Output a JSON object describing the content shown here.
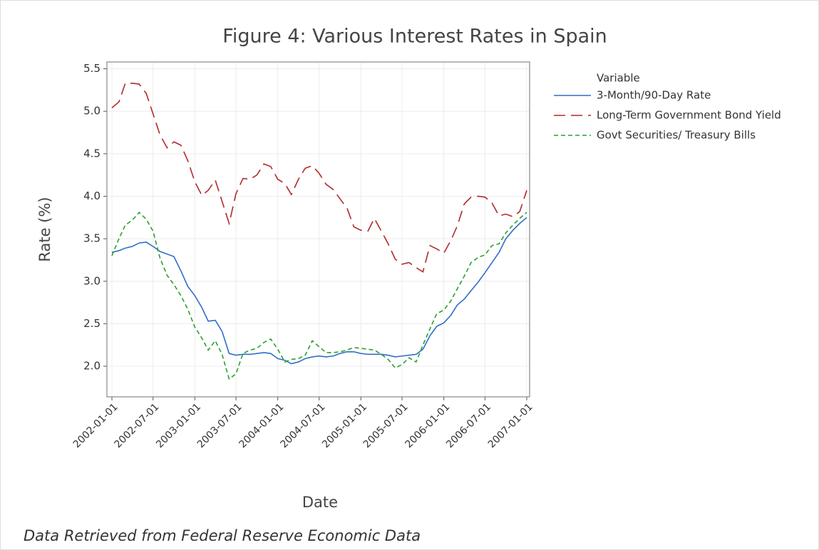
{
  "chart_data": {
    "type": "line",
    "title": "Figure 4: Various Interest Rates in Spain",
    "x_label": "Date",
    "y_label": "Rate (%)",
    "legend_title": "Variable",
    "caption": "Data Retrieved from Federal Reserve Economic Data",
    "legend": "right",
    "grid": true,
    "x": [
      "2002-01-01",
      "2002-02-01",
      "2002-03-01",
      "2002-04-01",
      "2002-05-01",
      "2002-06-01",
      "2002-07-01",
      "2002-08-01",
      "2002-09-01",
      "2002-10-01",
      "2002-11-01",
      "2002-12-01",
      "2003-01-01",
      "2003-02-01",
      "2003-03-01",
      "2003-04-01",
      "2003-05-01",
      "2003-06-01",
      "2003-07-01",
      "2003-08-01",
      "2003-09-01",
      "2003-10-01",
      "2003-11-01",
      "2003-12-01",
      "2004-01-01",
      "2004-02-01",
      "2004-03-01",
      "2004-04-01",
      "2004-05-01",
      "2004-06-01",
      "2004-07-01",
      "2004-08-01",
      "2004-09-01",
      "2004-10-01",
      "2004-11-01",
      "2004-12-01",
      "2005-01-01",
      "2005-02-01",
      "2005-03-01",
      "2005-04-01",
      "2005-05-01",
      "2005-06-01",
      "2005-07-01",
      "2005-08-01",
      "2005-09-01",
      "2005-10-01",
      "2005-11-01",
      "2005-12-01",
      "2006-01-01",
      "2006-02-01",
      "2006-03-01",
      "2006-04-01",
      "2006-05-01",
      "2006-06-01",
      "2006-07-01",
      "2006-08-01",
      "2006-09-01",
      "2006-10-01",
      "2006-11-01",
      "2006-12-01",
      "2007-01-01"
    ],
    "series": [
      {
        "name": "3-Month/90-Day Rate",
        "color": "#2f6fc6",
        "linestyle": "solid",
        "values": [
          3.34,
          3.36,
          3.39,
          3.41,
          3.45,
          3.46,
          3.41,
          3.35,
          3.32,
          3.29,
          3.12,
          2.94,
          2.83,
          2.69,
          2.53,
          2.54,
          2.41,
          2.15,
          2.13,
          2.14,
          2.14,
          2.15,
          2.16,
          2.15,
          2.09,
          2.07,
          2.03,
          2.05,
          2.09,
          2.11,
          2.12,
          2.11,
          2.12,
          2.15,
          2.17,
          2.17,
          2.15,
          2.14,
          2.14,
          2.14,
          2.13,
          2.11,
          2.12,
          2.13,
          2.14,
          2.2,
          2.36,
          2.47,
          2.51,
          2.6,
          2.72,
          2.79,
          2.89,
          2.99,
          3.1,
          3.22,
          3.34,
          3.5,
          3.6,
          3.68,
          3.75
        ]
      },
      {
        "name": "Long-Term Government Bond Yield",
        "color": "#b22a2a",
        "linestyle": "longdash",
        "values": [
          5.04,
          5.11,
          5.33,
          5.33,
          5.32,
          5.21,
          4.97,
          4.72,
          4.57,
          4.64,
          4.6,
          4.42,
          4.17,
          4.01,
          4.07,
          4.19,
          3.94,
          3.68,
          4.03,
          4.21,
          4.2,
          4.25,
          4.38,
          4.35,
          4.2,
          4.15,
          4.02,
          4.2,
          4.33,
          4.36,
          4.27,
          4.14,
          4.08,
          3.97,
          3.86,
          3.64,
          3.6,
          3.59,
          3.74,
          3.59,
          3.44,
          3.26,
          3.2,
          3.22,
          3.16,
          3.11,
          3.42,
          3.38,
          3.33,
          3.48,
          3.65,
          3.91,
          3.99,
          4.0,
          3.99,
          3.92,
          3.77,
          3.79,
          3.76,
          3.82,
          4.07
        ]
      },
      {
        "name": "Govt Securities/ Treasury Bills",
        "color": "#2ca02c",
        "linestyle": "shortdash",
        "values": [
          3.3,
          3.5,
          3.66,
          3.72,
          3.81,
          3.73,
          3.59,
          3.27,
          3.07,
          2.96,
          2.83,
          2.67,
          2.46,
          2.33,
          2.19,
          2.3,
          2.14,
          1.85,
          1.91,
          2.15,
          2.19,
          2.21,
          2.28,
          2.32,
          2.2,
          2.05,
          2.08,
          2.09,
          2.13,
          2.3,
          2.23,
          2.16,
          2.16,
          2.17,
          2.19,
          2.22,
          2.21,
          2.2,
          2.19,
          2.14,
          2.08,
          1.98,
          2.02,
          2.1,
          2.05,
          2.25,
          2.44,
          2.62,
          2.66,
          2.77,
          2.91,
          3.06,
          3.22,
          3.28,
          3.31,
          3.42,
          3.44,
          3.57,
          3.66,
          3.74,
          3.81
        ]
      }
    ],
    "ylim": [
      1.64,
      5.58
    ],
    "yticks": [
      {
        "value": 2,
        "label": "2.0"
      },
      {
        "value": 2.5,
        "label": "2.5"
      },
      {
        "value": 3,
        "label": "3.0"
      },
      {
        "value": 3.5,
        "label": "3.5"
      },
      {
        "value": 4,
        "label": "4.0"
      },
      {
        "value": 4.5,
        "label": "4.5"
      },
      {
        "value": 5,
        "label": "5.0"
      },
      {
        "value": 5.5,
        "label": "5.5"
      }
    ],
    "xticks": [
      "2002-01-01",
      "2002-07-01",
      "2003-01-01",
      "2003-07-01",
      "2004-01-01",
      "2004-07-01",
      "2005-01-01",
      "2005-07-01",
      "2006-01-01",
      "2006-07-01",
      "2007-01-01"
    ]
  }
}
